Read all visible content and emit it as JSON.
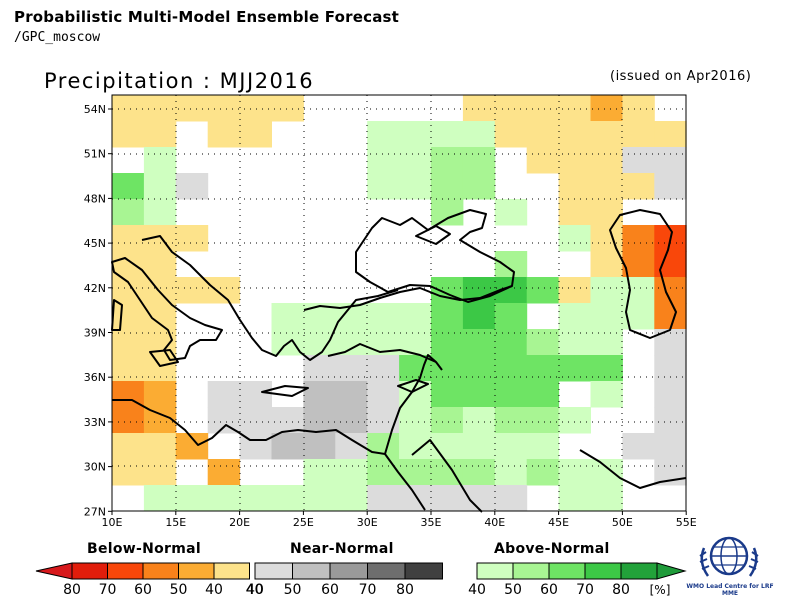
{
  "header": {
    "title": "Probabilistic Multi-Model Ensemble Forecast",
    "subtitle": "/GPC_moscow"
  },
  "map": {
    "title": "Precipitation : MJJ2016",
    "issued": "(issued on Apr2016)",
    "lat_labels": [
      "54N",
      "51N",
      "48N",
      "45N",
      "42N",
      "39N",
      "36N",
      "33N",
      "30N",
      "27N"
    ],
    "lon_labels": [
      "10E",
      "15E",
      "20E",
      "25E",
      "30E",
      "35E",
      "40E",
      "45E",
      "50E",
      "55E"
    ],
    "region": "Mediterranean, Black Sea, Middle East",
    "dominant_pattern": "Above-normal precipitation over Anatolia and Levant; below-normal over southern Italy, Libya coast and SE Caspian"
  },
  "legend": {
    "below": {
      "title": "Below-Normal",
      "labels": [
        "80",
        "70",
        "60",
        "50",
        "40"
      ],
      "colors": [
        "#e11d0b",
        "#f9470a",
        "#f9821b",
        "#fbac33",
        "#fde38b"
      ]
    },
    "near": {
      "title": "Near-Normal",
      "labels": [
        "40",
        "50",
        "60",
        "70",
        "80"
      ],
      "colors": [
        "#dcdcdc",
        "#c0c0c0",
        "#9a9a9a",
        "#6e6e6e",
        "#404040"
      ]
    },
    "above": {
      "title": "Above-Normal",
      "labels": [
        "40",
        "50",
        "60",
        "70",
        "80"
      ],
      "unit": "[%]",
      "colors": [
        "#cfffc0",
        "#a8f593",
        "#6ee464",
        "#3cc846",
        "#22a23a"
      ]
    }
  },
  "logo": {
    "text": "WMO Lead Centre for LRF MME",
    "icon": "wmo-globe-icon"
  }
}
